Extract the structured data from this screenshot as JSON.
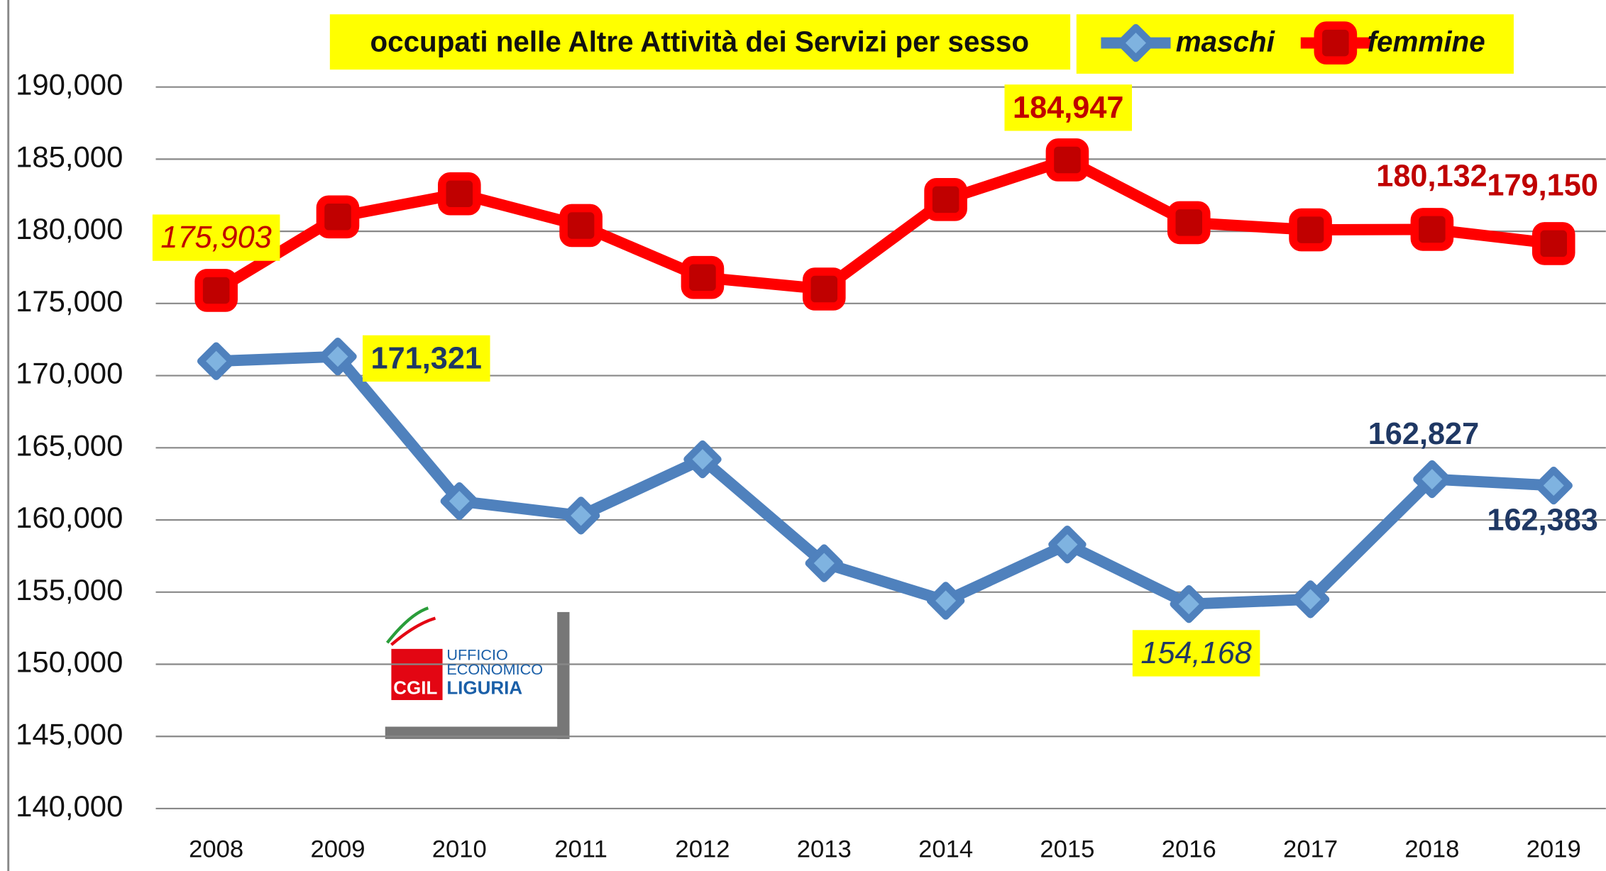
{
  "chart_data": {
    "type": "line",
    "title": "occupati nelle Altre Attività dei Servizi per sesso",
    "categories": [
      "2008",
      "2009",
      "2010",
      "2011",
      "2012",
      "2013",
      "2014",
      "2015",
      "2016",
      "2017",
      "2018",
      "2019"
    ],
    "series": [
      {
        "name": "maschi",
        "color": "#4f81bd",
        "values": [
          171000,
          171321,
          161300,
          160300,
          164200,
          157000,
          154400,
          158300,
          154168,
          154500,
          162827,
          162383
        ],
        "value_labels": [
          null,
          "171,321",
          null,
          null,
          null,
          null,
          null,
          null,
          "154,168",
          null,
          "162,827",
          "162,383"
        ]
      },
      {
        "name": "femmine",
        "color": "#ff0000",
        "values": [
          175903,
          181000,
          182600,
          180400,
          176800,
          176000,
          182200,
          184947,
          180600,
          180100,
          180132,
          179150
        ],
        "value_labels": [
          "175,903",
          null,
          null,
          null,
          null,
          null,
          null,
          "184,947",
          null,
          null,
          "180,132",
          "179,150"
        ]
      }
    ],
    "ylim": [
      140000,
      190000
    ],
    "yticks": [
      {
        "value": 140000,
        "label": "140,000"
      },
      {
        "value": 145000,
        "label": "145,000"
      },
      {
        "value": 150000,
        "label": "150,000"
      },
      {
        "value": 155000,
        "label": "155,000"
      },
      {
        "value": 160000,
        "label": "160,000"
      },
      {
        "value": 165000,
        "label": "165,000"
      },
      {
        "value": 170000,
        "label": "170,000"
      },
      {
        "value": 175000,
        "label": "175,000"
      },
      {
        "value": 180000,
        "label": "180,000"
      },
      {
        "value": 185000,
        "label": "185,000"
      },
      {
        "value": 190000,
        "label": "190,000"
      }
    ],
    "grid": true,
    "legend": "top",
    "logo_text": [
      "UFFICIO",
      "ECONOMICO",
      "CGIL",
      "LIGURIA"
    ]
  }
}
